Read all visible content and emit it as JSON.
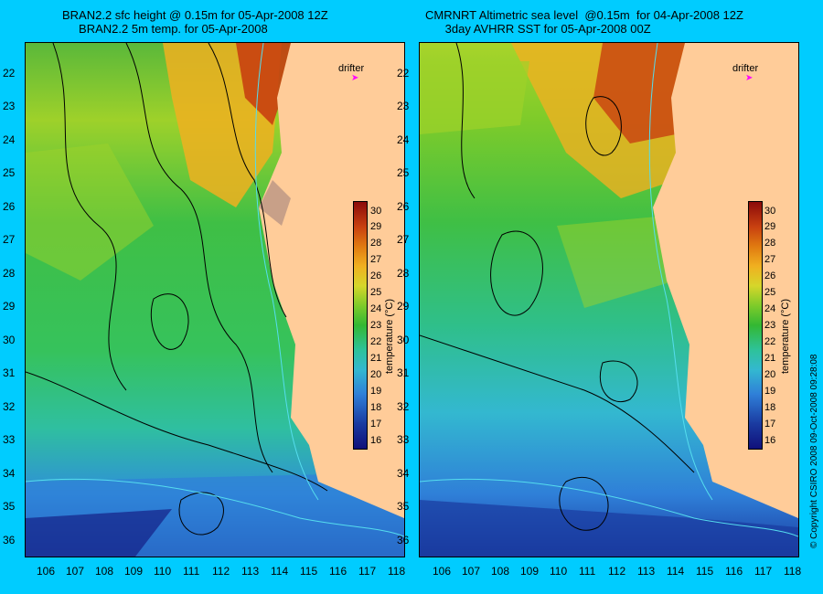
{
  "left_title": "BRAN2.2 sfc height @ 0.15m for 05-Apr-2008 12Z\n     BRAN2.2 5m temp. for 05-Apr-2008",
  "right_title": "CMRNRT Altimetric sea level  @0.15m  for 04-Apr-2008 12Z\n      3day AVHRR SST for 05-Apr-2008 00Z",
  "y_ticks": [
    "22",
    "23",
    "24",
    "25",
    "26",
    "27",
    "28",
    "29",
    "30",
    "31",
    "32",
    "33",
    "34",
    "35",
    "36"
  ],
  "x_ticks": [
    "106",
    "107",
    "108",
    "109",
    "110",
    "111",
    "112",
    "113",
    "114",
    "115",
    "116",
    "117",
    "118"
  ],
  "colorbar_ticks": [
    "30",
    "29",
    "28",
    "27",
    "26",
    "25",
    "24",
    "23",
    "22",
    "21",
    "20",
    "19",
    "18",
    "17",
    "16"
  ],
  "colorbar_label": "temperature (°C)",
  "drifter_label": "drifter",
  "copyright": "© Copyright CSIRO 2008     09-Oct-2008 09:28:08",
  "colors": {
    "land": "#ffcc99",
    "frame": "#00ccff",
    "drifter": "#ff00ff"
  }
}
